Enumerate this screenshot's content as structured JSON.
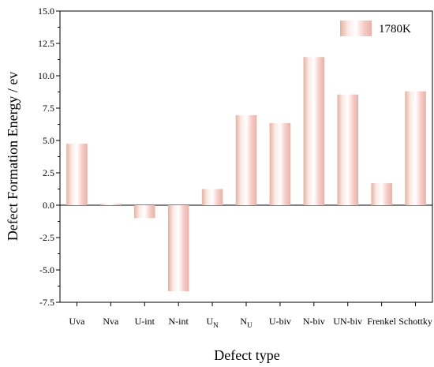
{
  "chart_data": {
    "type": "bar",
    "xlabel": "Defect type",
    "ylabel": "Defect Formation Energy / ev",
    "ylim": [
      -7.5,
      15.0
    ],
    "yticks": [
      "15.0",
      "12.5",
      "10.0",
      "7.5",
      "5.0",
      "2.5",
      "0.0",
      "-2.5",
      "-5.0",
      "-7.5"
    ],
    "categories": [
      {
        "label": "Uva"
      },
      {
        "label": "Nva"
      },
      {
        "label": "U-int"
      },
      {
        "label": "N-int"
      },
      {
        "label": "U",
        "sub": "N"
      },
      {
        "label": "N",
        "sub": "U"
      },
      {
        "label": "U-biv"
      },
      {
        "label": "N-biv"
      },
      {
        "label": "UN-biv"
      },
      {
        "label": "Frenkel"
      },
      {
        "label": "Schottky"
      }
    ],
    "series": [
      {
        "name": "1780K",
        "values": [
          4.75,
          0.1,
          -1.0,
          -6.65,
          1.25,
          6.95,
          6.35,
          11.45,
          8.55,
          1.7,
          8.8
        ]
      }
    ],
    "legend_position": "top-right",
    "grid": false,
    "colors": {
      "bar_edge": "#e6b8a8",
      "bar_center": "#f5c6c0",
      "bar_light": "#ffffff"
    }
  }
}
